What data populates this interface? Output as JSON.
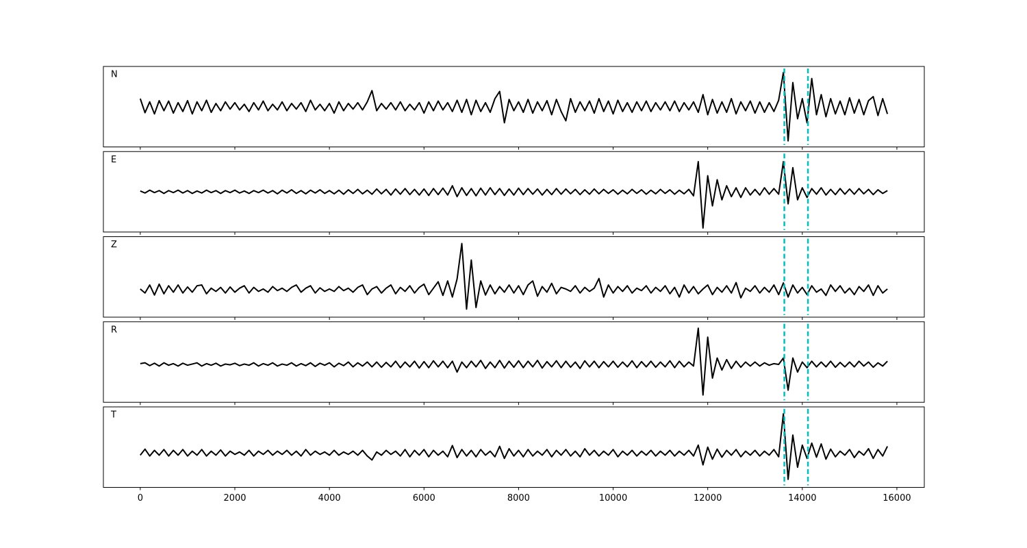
{
  "chart_data": {
    "type": "line",
    "layout": "stacked-panels",
    "x": [
      0,
      100,
      200,
      300,
      400,
      500,
      600,
      700,
      800,
      900,
      1000,
      1100,
      1200,
      1300,
      1400,
      1500,
      1600,
      1700,
      1800,
      1900,
      2000,
      2100,
      2200,
      2300,
      2400,
      2500,
      2600,
      2700,
      2800,
      2900,
      3000,
      3100,
      3200,
      3300,
      3400,
      3500,
      3600,
      3700,
      3800,
      3900,
      4000,
      4100,
      4200,
      4300,
      4400,
      4500,
      4600,
      4700,
      4800,
      4900,
      5000,
      5100,
      5200,
      5300,
      5400,
      5500,
      5600,
      5700,
      5800,
      5900,
      6000,
      6100,
      6200,
      6300,
      6400,
      6500,
      6600,
      6700,
      6800,
      6900,
      7000,
      7100,
      7200,
      7300,
      7400,
      7500,
      7600,
      7700,
      7800,
      7900,
      8000,
      8100,
      8200,
      8300,
      8400,
      8500,
      8600,
      8700,
      8800,
      8900,
      9000,
      9100,
      9200,
      9300,
      9400,
      9500,
      9600,
      9700,
      9800,
      9900,
      10000,
      10100,
      10200,
      10300,
      10400,
      10500,
      10600,
      10700,
      10800,
      10900,
      11000,
      11100,
      11200,
      11300,
      11400,
      11500,
      11600,
      11700,
      11800,
      11900,
      12000,
      12100,
      12200,
      12300,
      12400,
      12500,
      12600,
      12700,
      12800,
      12900,
      13000,
      13100,
      13200,
      13300,
      13400,
      13500,
      13600,
      13700,
      13800,
      13900,
      14000,
      14100,
      14200,
      14300,
      14400,
      14500,
      14600,
      14700,
      14800,
      14900,
      15000,
      15100,
      15200,
      15300,
      15400,
      15500,
      15600,
      15700,
      15800
    ],
    "series": [
      {
        "name": "N",
        "color": "#000000",
        "values": [
          0.2,
          -0.15,
          0.12,
          -0.18,
          0.15,
          -0.1,
          0.14,
          -0.16,
          0.1,
          -0.12,
          0.15,
          -0.18,
          0.12,
          -0.1,
          0.16,
          -0.14,
          0.08,
          -0.1,
          0.12,
          -0.06,
          0.1,
          -0.08,
          0.06,
          -0.12,
          0.1,
          -0.08,
          0.14,
          -0.1,
          0.06,
          -0.08,
          0.12,
          -0.1,
          0.08,
          -0.06,
          0.1,
          -0.12,
          0.16,
          -0.08,
          0.06,
          -0.1,
          0.08,
          -0.16,
          0.12,
          -0.1,
          0.08,
          -0.06,
          0.1,
          -0.08,
          0.12,
          0.4,
          -0.1,
          0.08,
          -0.06,
          0.1,
          -0.08,
          0.12,
          -0.1,
          0.06,
          -0.08,
          0.1,
          -0.16,
          0.12,
          -0.1,
          0.14,
          -0.08,
          0.1,
          -0.12,
          0.16,
          -0.14,
          0.18,
          -0.2,
          0.16,
          -0.12,
          0.1,
          -0.14,
          0.2,
          0.38,
          -0.4,
          0.18,
          -0.1,
          0.12,
          -0.14,
          0.18,
          -0.16,
          0.12,
          -0.1,
          0.15,
          -0.2,
          0.18,
          -0.12,
          -0.35,
          0.2,
          -0.14,
          0.12,
          -0.1,
          0.14,
          -0.16,
          0.2,
          -0.12,
          0.14,
          -0.18,
          0.16,
          -0.12,
          0.1,
          -0.14,
          0.12,
          -0.1,
          0.14,
          -0.12,
          0.1,
          -0.08,
          0.12,
          -0.1,
          0.14,
          -0.12,
          0.1,
          -0.08,
          0.12,
          -0.14,
          0.3,
          -0.2,
          0.18,
          -0.16,
          0.12,
          -0.14,
          0.2,
          -0.18,
          0.12,
          -0.1,
          0.14,
          -0.16,
          0.12,
          -0.14,
          0.1,
          -0.12,
          0.16,
          0.85,
          -0.85,
          0.6,
          -0.3,
          0.2,
          -0.4,
          0.7,
          -0.2,
          0.3,
          -0.25,
          0.2,
          -0.18,
          0.14,
          -0.2,
          0.22,
          -0.16,
          0.18,
          -0.2,
          0.15,
          0.25,
          -0.22,
          0.2,
          -0.18
        ]
      },
      {
        "name": "E",
        "color": "#000000",
        "values": [
          0.02,
          -0.03,
          0.04,
          -0.02,
          0.03,
          -0.04,
          0.03,
          -0.02,
          0.04,
          -0.03,
          0.03,
          -0.04,
          0.02,
          -0.03,
          0.04,
          -0.02,
          0.03,
          -0.04,
          0.03,
          -0.02,
          0.04,
          -0.03,
          0.02,
          -0.04,
          0.03,
          -0.02,
          0.04,
          -0.03,
          0.03,
          -0.05,
          0.04,
          -0.03,
          0.05,
          -0.04,
          0.03,
          -0.05,
          0.04,
          -0.03,
          0.05,
          -0.04,
          0.03,
          -0.05,
          0.04,
          -0.06,
          0.05,
          -0.04,
          0.06,
          -0.05,
          0.04,
          -0.06,
          0.07,
          -0.05,
          0.06,
          -0.08,
          0.07,
          -0.06,
          0.08,
          -0.07,
          0.06,
          -0.08,
          0.07,
          -0.09,
          0.08,
          -0.07,
          0.09,
          -0.08,
          0.15,
          -0.12,
          0.1,
          -0.09,
          0.08,
          -0.1,
          0.09,
          -0.08,
          0.1,
          -0.07,
          0.08,
          -0.09,
          0.07,
          -0.08,
          0.09,
          -0.07,
          0.08,
          -0.06,
          0.07,
          -0.08,
          0.06,
          -0.07,
          0.08,
          -0.06,
          0.07,
          -0.05,
          0.06,
          -0.07,
          0.05,
          -0.06,
          0.07,
          -0.05,
          0.06,
          -0.04,
          0.05,
          -0.06,
          0.04,
          -0.05,
          0.06,
          -0.04,
          0.05,
          -0.06,
          0.04,
          -0.05,
          0.06,
          -0.04,
          0.05,
          -0.06,
          0.04,
          -0.05,
          0.06,
          -0.1,
          0.75,
          -0.9,
          0.4,
          -0.35,
          0.3,
          -0.2,
          0.15,
          -0.12,
          0.1,
          -0.14,
          0.1,
          -0.08,
          0.06,
          -0.08,
          0.1,
          -0.06,
          0.08,
          -0.06,
          0.75,
          -0.3,
          0.6,
          -0.2,
          0.1,
          -0.14,
          0.08,
          -0.06,
          0.1,
          -0.08,
          0.06,
          -0.07,
          0.08,
          -0.06,
          0.07,
          -0.06,
          0.08,
          -0.05,
          0.06,
          -0.07,
          0.05,
          -0.04,
          0.03
        ]
      },
      {
        "name": "Z",
        "color": "#000000",
        "values": [
          -0.3,
          -0.4,
          -0.2,
          -0.45,
          -0.18,
          -0.42,
          -0.22,
          -0.38,
          -0.2,
          -0.4,
          -0.25,
          -0.38,
          -0.22,
          -0.2,
          -0.42,
          -0.28,
          -0.36,
          -0.26,
          -0.4,
          -0.25,
          -0.38,
          -0.28,
          -0.22,
          -0.4,
          -0.26,
          -0.36,
          -0.3,
          -0.38,
          -0.24,
          -0.34,
          -0.28,
          -0.36,
          -0.26,
          -0.2,
          -0.38,
          -0.28,
          -0.22,
          -0.4,
          -0.27,
          -0.36,
          -0.3,
          -0.36,
          -0.24,
          -0.34,
          -0.28,
          -0.38,
          -0.26,
          -0.2,
          -0.44,
          -0.3,
          -0.24,
          -0.4,
          -0.28,
          -0.2,
          -0.42,
          -0.26,
          -0.36,
          -0.22,
          -0.4,
          -0.26,
          -0.18,
          -0.44,
          -0.28,
          -0.12,
          -0.46,
          -0.1,
          -0.5,
          -0.05,
          0.83,
          -0.8,
          0.42,
          -0.76,
          -0.1,
          -0.45,
          -0.2,
          -0.42,
          -0.24,
          -0.38,
          -0.2,
          -0.4,
          -0.22,
          -0.44,
          -0.2,
          -0.1,
          -0.48,
          -0.24,
          -0.38,
          -0.16,
          -0.42,
          -0.26,
          -0.3,
          -0.36,
          -0.22,
          -0.4,
          -0.26,
          -0.36,
          -0.28,
          -0.04,
          -0.5,
          -0.2,
          -0.4,
          -0.24,
          -0.36,
          -0.22,
          -0.4,
          -0.28,
          -0.34,
          -0.22,
          -0.4,
          -0.26,
          -0.36,
          -0.22,
          -0.42,
          -0.26,
          -0.5,
          -0.2,
          -0.4,
          -0.24,
          -0.42,
          -0.3,
          -0.2,
          -0.44,
          -0.26,
          -0.38,
          -0.22,
          -0.4,
          -0.14,
          -0.52,
          -0.28,
          -0.36,
          -0.22,
          -0.4,
          -0.26,
          -0.38,
          -0.2,
          -0.44,
          -0.15,
          -0.5,
          -0.2,
          -0.4,
          -0.26,
          -0.44,
          -0.22,
          -0.38,
          -0.3,
          -0.46,
          -0.2,
          -0.36,
          -0.22,
          -0.4,
          -0.28,
          -0.44,
          -0.24,
          -0.36,
          -0.2,
          -0.46,
          -0.22,
          -0.4,
          -0.3
        ]
      },
      {
        "name": "R",
        "color": "#000000",
        "values": [
          -0.04,
          -0.02,
          -0.09,
          -0.03,
          -0.1,
          -0.02,
          -0.08,
          -0.04,
          -0.1,
          -0.03,
          -0.08,
          -0.05,
          -0.02,
          -0.1,
          -0.04,
          -0.08,
          -0.03,
          -0.1,
          -0.05,
          -0.07,
          -0.03,
          -0.09,
          -0.05,
          -0.08,
          -0.02,
          -0.1,
          -0.04,
          -0.08,
          -0.02,
          -0.1,
          -0.05,
          -0.08,
          -0.02,
          -0.1,
          -0.04,
          -0.09,
          -0.02,
          -0.11,
          -0.03,
          -0.08,
          -0.02,
          -0.12,
          -0.03,
          -0.09,
          0.0,
          -0.12,
          -0.02,
          -0.1,
          0.0,
          -0.12,
          0.0,
          -0.13,
          -0.01,
          -0.12,
          0.02,
          -0.14,
          0.0,
          -0.12,
          0.02,
          -0.15,
          0.01,
          -0.14,
          0.03,
          -0.12,
          0.02,
          -0.14,
          0.02,
          -0.25,
          0.0,
          -0.14,
          0.02,
          -0.12,
          0.04,
          -0.16,
          0.0,
          -0.14,
          0.04,
          -0.15,
          0.02,
          -0.13,
          0.03,
          -0.14,
          0.02,
          -0.12,
          0.04,
          -0.15,
          0.01,
          -0.12,
          0.03,
          -0.14,
          0.02,
          -0.13,
          0.0,
          -0.16,
          0.03,
          -0.12,
          0.02,
          -0.14,
          0.01,
          -0.12,
          0.02,
          -0.13,
          0.0,
          -0.12,
          0.03,
          -0.14,
          0.01,
          -0.12,
          0.02,
          -0.13,
          0.0,
          -0.12,
          0.03,
          -0.14,
          0.02,
          -0.12,
          0.0,
          -0.1,
          0.84,
          -0.82,
          0.62,
          -0.4,
          0.1,
          -0.2,
          0.06,
          -0.16,
          0.02,
          -0.13,
          0.0,
          -0.1,
          0.0,
          -0.1,
          -0.02,
          -0.08,
          -0.04,
          -0.06,
          0.1,
          -0.7,
          0.1,
          -0.25,
          0.0,
          -0.14,
          0.02,
          -0.12,
          0.0,
          -0.12,
          0.02,
          -0.13,
          -0.01,
          -0.12,
          0.0,
          -0.12,
          0.02,
          -0.1,
          0.0,
          -0.13,
          -0.02,
          -0.1,
          0.02
        ]
      },
      {
        "name": "T",
        "color": "#000000",
        "values": [
          -0.2,
          -0.05,
          -0.22,
          -0.08,
          -0.2,
          -0.06,
          -0.22,
          -0.08,
          -0.2,
          -0.06,
          -0.22,
          -0.1,
          -0.2,
          -0.06,
          -0.22,
          -0.1,
          -0.2,
          -0.07,
          -0.22,
          -0.1,
          -0.18,
          -0.12,
          -0.2,
          -0.08,
          -0.22,
          -0.1,
          -0.18,
          -0.08,
          -0.2,
          -0.1,
          -0.18,
          -0.08,
          -0.2,
          -0.1,
          -0.22,
          -0.06,
          -0.2,
          -0.1,
          -0.18,
          -0.12,
          -0.2,
          -0.08,
          -0.2,
          -0.12,
          -0.18,
          -0.1,
          -0.2,
          -0.08,
          -0.22,
          -0.32,
          -0.12,
          -0.2,
          -0.08,
          -0.18,
          -0.1,
          -0.22,
          -0.06,
          -0.24,
          -0.08,
          -0.2,
          -0.06,
          -0.24,
          -0.08,
          -0.2,
          -0.1,
          -0.24,
          0.04,
          -0.26,
          -0.06,
          -0.22,
          -0.08,
          -0.24,
          -0.06,
          -0.2,
          -0.1,
          -0.24,
          0.02,
          -0.28,
          -0.04,
          -0.22,
          -0.08,
          -0.24,
          -0.06,
          -0.22,
          -0.1,
          -0.2,
          -0.06,
          -0.24,
          -0.08,
          -0.2,
          -0.06,
          -0.22,
          -0.1,
          -0.24,
          -0.04,
          -0.2,
          -0.08,
          -0.22,
          -0.1,
          -0.2,
          -0.06,
          -0.24,
          -0.1,
          -0.2,
          -0.08,
          -0.22,
          -0.1,
          -0.2,
          -0.08,
          -0.22,
          -0.1,
          -0.2,
          -0.08,
          -0.22,
          -0.1,
          -0.2,
          -0.08,
          -0.22,
          0.05,
          -0.44,
          0.0,
          -0.3,
          -0.05,
          -0.25,
          -0.08,
          -0.2,
          -0.06,
          -0.24,
          -0.1,
          -0.2,
          -0.08,
          -0.22,
          -0.1,
          -0.2,
          -0.06,
          -0.24,
          0.83,
          -0.8,
          0.3,
          -0.5,
          0.05,
          -0.28,
          0.1,
          -0.25,
          0.08,
          -0.3,
          -0.05,
          -0.24,
          -0.1,
          -0.2,
          -0.06,
          -0.26,
          -0.1,
          -0.2,
          -0.04,
          -0.28,
          -0.06,
          -0.22,
          0.02
        ]
      }
    ],
    "vlines": [
      13620,
      14120
    ],
    "vline_color": "#00bfbf",
    "xlim": [
      -780,
      16580
    ],
    "xticks": [
      0,
      2000,
      4000,
      6000,
      8000,
      10000,
      12000,
      14000,
      16000
    ],
    "ylim": [
      -1,
      1
    ]
  }
}
